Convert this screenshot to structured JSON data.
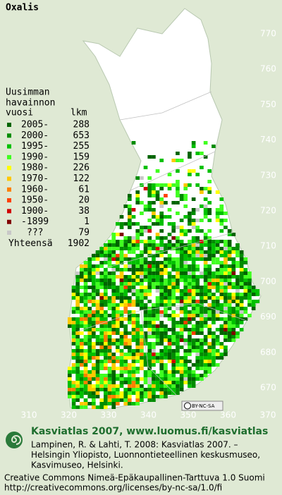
{
  "title": "Oxalis",
  "legend": {
    "header": [
      "Uusimman",
      "havainnon"
    ],
    "col_headers": [
      "vuosi",
      "lkm"
    ],
    "entries": [
      {
        "label": "2005-",
        "count": "288",
        "color": "#006400"
      },
      {
        "label": "2000-",
        "count": "653",
        "color": "#008c00"
      },
      {
        "label": "1995-",
        "count": "255",
        "color": "#00c000"
      },
      {
        "label": "1990-",
        "count": "159",
        "color": "#40ff20"
      },
      {
        "label": "1980-",
        "count": "226",
        "color": "#ffff00"
      },
      {
        "label": "1970-",
        "count": "122",
        "color": "#ffc800"
      },
      {
        "label": "1960-",
        "count": "61",
        "color": "#ff8000"
      },
      {
        "label": "1950-",
        "count": "20",
        "color": "#ff4000"
      },
      {
        "label": "1900-",
        "count": "38",
        "color": "#d00000"
      },
      {
        "label": "-1899",
        "count": "1",
        "color": "#800000"
      },
      {
        "label": "???",
        "count": "79",
        "color": "#c8c8c8"
      }
    ],
    "total_label": "Yhteensä",
    "total": "1902"
  },
  "map": {
    "y_ticks": [
      "770",
      "760",
      "750",
      "740",
      "730",
      "720",
      "710",
      "700",
      "690",
      "680",
      "670"
    ],
    "x_ticks": [
      "310",
      "320",
      "330",
      "340",
      "350",
      "360",
      "370"
    ],
    "license_badge": "BY-NC-SA"
  },
  "footer": {
    "heading": "Kasviatlas 2007, www.luomus.fi/kasviatlas",
    "citation": [
      "Lampinen, R. & Lahti, T. 2008: Kasviatlas 2007. –",
      "Helsingin Yliopisto, Luonnontieteellinen keskusmuseo,",
      "Kasvimuseo, Helsinki."
    ],
    "license": [
      "Creative Commons Nimeä-Epäkaupallinen-Tarttuva 1.0 Suomi",
      "http://creativecommons.org/licenses/by-nc-sa/1.0/fi"
    ]
  }
}
